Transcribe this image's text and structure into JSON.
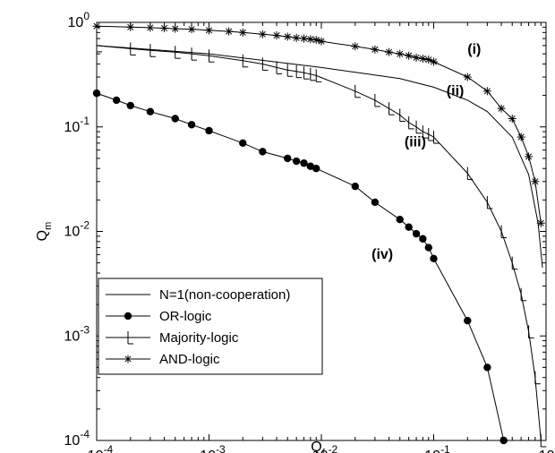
{
  "chart_data": {
    "type": "line",
    "title": "",
    "xlabel": "Q_f",
    "ylabel": "Q_m",
    "xscale": "log",
    "yscale": "log",
    "xlim": [
      0.0001,
      1
    ],
    "ylim": [
      0.0001,
      1
    ],
    "grid": false,
    "legend_position": "bottom-left",
    "x_ticks": [
      {
        "value": 0.0001,
        "base": "10",
        "exp": "-4"
      },
      {
        "value": 0.001,
        "base": "10",
        "exp": "-3"
      },
      {
        "value": 0.01,
        "base": "10",
        "exp": "-2"
      },
      {
        "value": 0.1,
        "base": "10",
        "exp": "-1"
      },
      {
        "value": 1,
        "base": "10",
        "exp": "0"
      }
    ],
    "y_ticks": [
      {
        "value": 0.0001,
        "base": "10",
        "exp": "-4"
      },
      {
        "value": 0.001,
        "base": "10",
        "exp": "-3"
      },
      {
        "value": 0.01,
        "base": "10",
        "exp": "-2"
      },
      {
        "value": 0.1,
        "base": "10",
        "exp": "-1"
      },
      {
        "value": 1,
        "base": "10",
        "exp": "0"
      }
    ],
    "series": [
      {
        "name": "N=1(non-cooperation)",
        "marker": "none",
        "x": [
          0.0001,
          0.001,
          0.01,
          0.05,
          0.1,
          0.2,
          0.3,
          0.5,
          0.7,
          0.85,
          0.93
        ],
        "y": [
          0.6,
          0.5,
          0.37,
          0.29,
          0.24,
          0.18,
          0.14,
          0.08,
          0.035,
          0.012,
          0.0045
        ]
      },
      {
        "name": "OR-logic",
        "marker": "filled-circle",
        "x": [
          0.0001,
          0.00015,
          0.0002,
          0.0003,
          0.0005,
          0.0007,
          0.001,
          0.002,
          0.003,
          0.005,
          0.006,
          0.007,
          0.008,
          0.009,
          0.02,
          0.03,
          0.05,
          0.06,
          0.07,
          0.08,
          0.09,
          0.1,
          0.2,
          0.3,
          0.42
        ],
        "y": [
          0.21,
          0.18,
          0.16,
          0.14,
          0.12,
          0.105,
          0.092,
          0.07,
          0.058,
          0.05,
          0.047,
          0.045,
          0.042,
          0.04,
          0.027,
          0.019,
          0.013,
          0.011,
          0.0095,
          0.0085,
          0.007,
          0.0055,
          0.0014,
          0.0005,
          0.0001
        ]
      },
      {
        "name": "Majority-logic",
        "marker": "plus-tick",
        "x": [
          0.0001,
          0.0002,
          0.0003,
          0.0005,
          0.0007,
          0.001,
          0.002,
          0.003,
          0.004,
          0.005,
          0.006,
          0.007,
          0.008,
          0.009,
          0.02,
          0.03,
          0.04,
          0.05,
          0.06,
          0.07,
          0.08,
          0.09,
          0.1,
          0.2,
          0.3,
          0.4,
          0.5,
          0.6,
          0.7,
          0.8,
          0.9
        ],
        "y": [
          0.6,
          0.56,
          0.54,
          0.52,
          0.5,
          0.48,
          0.43,
          0.4,
          0.37,
          0.35,
          0.34,
          0.33,
          0.32,
          0.31,
          0.22,
          0.18,
          0.15,
          0.13,
          0.11,
          0.1,
          0.09,
          0.085,
          0.08,
          0.036,
          0.019,
          0.01,
          0.005,
          0.0025,
          0.0011,
          0.0004,
          0.0001
        ]
      },
      {
        "name": "AND-logic",
        "marker": "asterisk",
        "x": [
          0.0001,
          0.0002,
          0.0003,
          0.0004,
          0.0005,
          0.0007,
          0.001,
          0.0015,
          0.002,
          0.003,
          0.004,
          0.005,
          0.006,
          0.007,
          0.008,
          0.009,
          0.01,
          0.02,
          0.03,
          0.04,
          0.05,
          0.06,
          0.07,
          0.08,
          0.09,
          0.1,
          0.2,
          0.3,
          0.4,
          0.5,
          0.6,
          0.7,
          0.8,
          0.9
        ],
        "y": [
          0.92,
          0.9,
          0.89,
          0.88,
          0.87,
          0.86,
          0.84,
          0.82,
          0.8,
          0.77,
          0.75,
          0.73,
          0.71,
          0.7,
          0.69,
          0.68,
          0.66,
          0.59,
          0.55,
          0.52,
          0.5,
          0.48,
          0.46,
          0.45,
          0.44,
          0.42,
          0.3,
          0.22,
          0.15,
          0.12,
          0.08,
          0.052,
          0.03,
          0.012
        ]
      }
    ],
    "annotations": [
      {
        "text": "(i)",
        "x": 0.2,
        "y": 0.5
      },
      {
        "text": "(ii)",
        "x": 0.13,
        "y": 0.2
      },
      {
        "text": "(iii)",
        "x": 0.055,
        "y": 0.065
      },
      {
        "text": "(iv)",
        "x": 0.028,
        "y": 0.0055
      }
    ]
  }
}
